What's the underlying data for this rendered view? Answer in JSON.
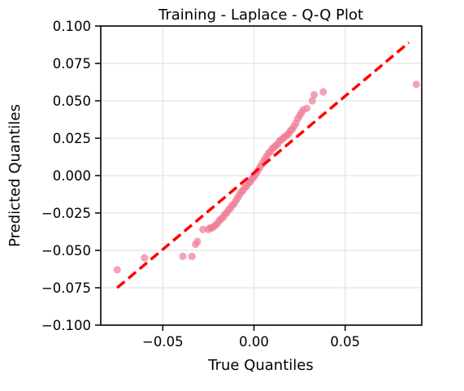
{
  "chart_data": {
    "type": "scatter",
    "title": "Training - Laplace - Q-Q Plot",
    "xlabel": "True Quantiles",
    "ylabel": "Predicted Quantiles",
    "xlim": [
      -0.084,
      0.092
    ],
    "ylim": [
      -0.1,
      0.1
    ],
    "xticks": [
      -0.05,
      0.0,
      0.05
    ],
    "xtick_labels": [
      "−0.05",
      "0.00",
      "0.05"
    ],
    "yticks": [
      -0.1,
      -0.075,
      -0.05,
      -0.025,
      0.0,
      0.025,
      0.05,
      0.075,
      0.1
    ],
    "ytick_labels": [
      "−0.100",
      "−0.075",
      "−0.050",
      "−0.025",
      "0.000",
      "0.025",
      "0.050",
      "0.075",
      "0.100"
    ],
    "grid": true,
    "colors": {
      "points": "#f07c96",
      "reference_line": "#ff0000"
    },
    "reference_line": {
      "x": [
        -0.075,
        0.085
      ],
      "y": [
        -0.075,
        0.089
      ]
    },
    "series": [
      {
        "points": [
          [
            -0.075,
            -0.063
          ],
          [
            -0.06,
            -0.055
          ],
          [
            -0.039,
            -0.054
          ],
          [
            -0.034,
            -0.054
          ],
          [
            -0.032,
            -0.046
          ],
          [
            -0.031,
            -0.044
          ],
          [
            -0.028,
            -0.036
          ],
          [
            -0.025,
            -0.036
          ],
          [
            -0.024,
            -0.035
          ],
          [
            -0.023,
            -0.035
          ],
          [
            -0.022,
            -0.034
          ],
          [
            -0.021,
            -0.033
          ],
          [
            -0.02,
            -0.032
          ],
          [
            -0.019,
            -0.03
          ],
          [
            -0.018,
            -0.029
          ],
          [
            -0.017,
            -0.028
          ],
          [
            -0.016,
            -0.026
          ],
          [
            -0.015,
            -0.025
          ],
          [
            -0.014,
            -0.023
          ],
          [
            -0.013,
            -0.022
          ],
          [
            -0.012,
            -0.02
          ],
          [
            -0.011,
            -0.019
          ],
          [
            -0.01,
            -0.017
          ],
          [
            -0.009,
            -0.015
          ],
          [
            -0.008,
            -0.013
          ],
          [
            -0.007,
            -0.011
          ],
          [
            -0.006,
            -0.01
          ],
          [
            -0.005,
            -0.008
          ],
          [
            -0.004,
            -0.007
          ],
          [
            -0.003,
            -0.005
          ],
          [
            -0.002,
            -0.004
          ],
          [
            -0.001,
            -0.002
          ],
          [
            0.0,
            -0.001
          ],
          [
            0.001,
            0.001
          ],
          [
            0.002,
            0.003
          ],
          [
            0.003,
            0.005
          ],
          [
            0.004,
            0.007
          ],
          [
            0.005,
            0.009
          ],
          [
            0.006,
            0.011
          ],
          [
            0.007,
            0.013
          ],
          [
            0.008,
            0.015
          ],
          [
            0.009,
            0.016
          ],
          [
            0.01,
            0.018
          ],
          [
            0.011,
            0.019
          ],
          [
            0.012,
            0.02
          ],
          [
            0.013,
            0.021
          ],
          [
            0.014,
            0.023
          ],
          [
            0.015,
            0.024
          ],
          [
            0.016,
            0.025
          ],
          [
            0.017,
            0.026
          ],
          [
            0.018,
            0.027
          ],
          [
            0.019,
            0.028
          ],
          [
            0.02,
            0.03
          ],
          [
            0.021,
            0.031
          ],
          [
            0.022,
            0.033
          ],
          [
            0.023,
            0.035
          ],
          [
            0.024,
            0.038
          ],
          [
            0.025,
            0.04
          ],
          [
            0.026,
            0.042
          ],
          [
            0.027,
            0.044
          ],
          [
            0.029,
            0.045
          ],
          [
            0.032,
            0.05
          ],
          [
            0.033,
            0.054
          ],
          [
            0.038,
            0.056
          ],
          [
            0.089,
            0.061
          ]
        ]
      }
    ]
  }
}
